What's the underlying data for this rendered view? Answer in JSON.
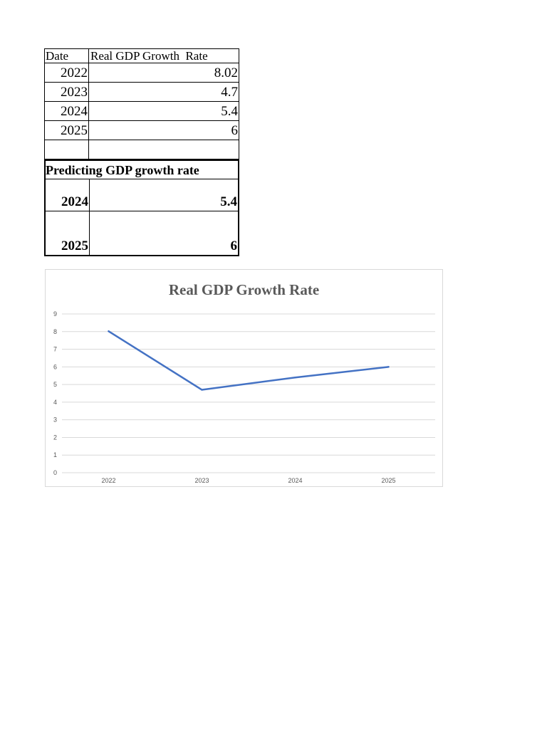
{
  "table": {
    "headers": [
      "Date",
      "Real GDP Growth  Rate"
    ],
    "rows": [
      {
        "date": "2022",
        "rate": "8.02"
      },
      {
        "date": "2023",
        "rate": "4.7"
      },
      {
        "date": "2024",
        "rate": "5.4"
      },
      {
        "date": "2025",
        "rate": "6"
      }
    ],
    "prediction": {
      "title": "Predicting GDP growth rate",
      "rows": [
        {
          "date": "2024",
          "rate": "5.4"
        },
        {
          "date": "2025",
          "rate": "6"
        }
      ]
    }
  },
  "chart_data": {
    "type": "line",
    "title": "Real GDP Growth Rate",
    "categories": [
      "2022",
      "2023",
      "2024",
      "2025"
    ],
    "series": [
      {
        "values": [
          8.02,
          4.7,
          5.4,
          6
        ],
        "color": "#4472c4"
      }
    ],
    "ylim": [
      0,
      9
    ],
    "yticks": [
      0,
      1,
      2,
      3,
      4,
      5,
      6,
      7,
      8,
      9
    ],
    "xlabel": "",
    "ylabel": "",
    "grid": true,
    "legend": "none",
    "gridline_color": "#d9d9d9"
  }
}
